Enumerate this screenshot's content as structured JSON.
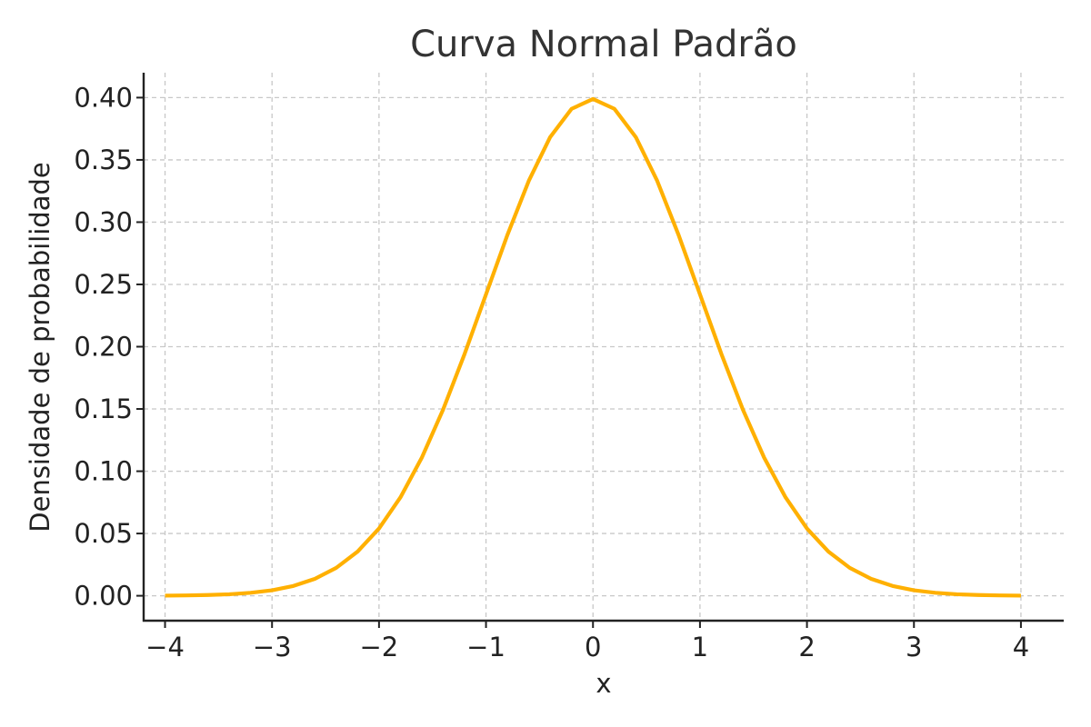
{
  "chart_data": {
    "type": "line",
    "title": "Curva Normal Padrão",
    "xlabel": "x",
    "ylabel": "Densidade de probabilidade",
    "xlim": [
      -4.2,
      4.4
    ],
    "ylim": [
      -0.02,
      0.42
    ],
    "xticks": [
      -4,
      -3,
      -2,
      -1,
      0,
      1,
      2,
      3,
      4
    ],
    "xtick_labels": [
      "−4",
      "−3",
      "−2",
      "−1",
      "0",
      "1",
      "2",
      "3",
      "4"
    ],
    "yticks": [
      0.0,
      0.05,
      0.1,
      0.15,
      0.2,
      0.25,
      0.3,
      0.35,
      0.4
    ],
    "ytick_labels": [
      "0.00",
      "0.05",
      "0.10",
      "0.15",
      "0.20",
      "0.25",
      "0.30",
      "0.35",
      "0.40"
    ],
    "grid": true,
    "series": [
      {
        "color": "#FFB000",
        "x": [
          -4.0,
          -3.8,
          -3.6,
          -3.4,
          -3.2,
          -3.0,
          -2.8,
          -2.6,
          -2.4,
          -2.2,
          -2.0,
          -1.8,
          -1.6,
          -1.4,
          -1.2,
          -1.0,
          -0.8,
          -0.6,
          -0.4,
          -0.2,
          0.0,
          0.2,
          0.4,
          0.6,
          0.8,
          1.0,
          1.2,
          1.4,
          1.6,
          1.8,
          2.0,
          2.2,
          2.4,
          2.6,
          2.8,
          3.0,
          3.2,
          3.4,
          3.6,
          3.8,
          4.0
        ],
        "y": [
          0.0001,
          0.0003,
          0.0006,
          0.0012,
          0.0024,
          0.0044,
          0.0079,
          0.0136,
          0.0224,
          0.0355,
          0.054,
          0.079,
          0.1109,
          0.1497,
          0.1942,
          0.242,
          0.2897,
          0.3332,
          0.3683,
          0.391,
          0.3989,
          0.391,
          0.3683,
          0.3332,
          0.2897,
          0.242,
          0.1942,
          0.1497,
          0.1109,
          0.079,
          0.054,
          0.0355,
          0.0224,
          0.0136,
          0.0079,
          0.0044,
          0.0024,
          0.0012,
          0.0006,
          0.0003,
          0.0001
        ]
      }
    ]
  }
}
